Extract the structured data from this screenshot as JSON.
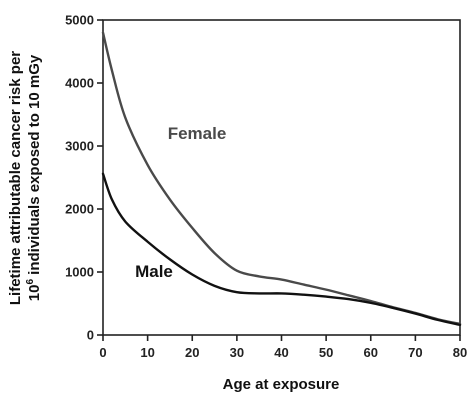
{
  "chart_data": {
    "type": "line",
    "xlabel": "Age at exposure",
    "ylabel_line1": "Lifetime attributable cancer risk per",
    "ylabel_line2_prefix": "10",
    "ylabel_line2_superscript": "6",
    "ylabel_line2_suffix": " individuals exposed to 10 mGy",
    "xlim": [
      0,
      80
    ],
    "ylim": [
      0,
      5000
    ],
    "x_ticks": [
      0,
      10,
      20,
      30,
      40,
      50,
      60,
      70,
      80
    ],
    "y_ticks": [
      0,
      1000,
      2000,
      3000,
      4000,
      5000
    ],
    "grid": false,
    "legend": "inline labels",
    "series": [
      {
        "name": "Female",
        "color": "#4a4a4a",
        "x": [
          0,
          2,
          5,
          10,
          15,
          20,
          25,
          30,
          35,
          40,
          45,
          50,
          55,
          60,
          65,
          70,
          75,
          80
        ],
        "y": [
          4800,
          4200,
          3450,
          2700,
          2150,
          1700,
          1300,
          1020,
          930,
          880,
          800,
          720,
          630,
          540,
          440,
          350,
          250,
          175
        ]
      },
      {
        "name": "Male",
        "color": "#111111",
        "x": [
          0,
          2,
          5,
          10,
          15,
          20,
          25,
          30,
          35,
          40,
          45,
          50,
          55,
          60,
          65,
          70,
          75,
          80
        ],
        "y": [
          2560,
          2150,
          1800,
          1480,
          1200,
          960,
          780,
          680,
          660,
          660,
          640,
          610,
          570,
          510,
          430,
          340,
          240,
          160
        ]
      }
    ]
  }
}
